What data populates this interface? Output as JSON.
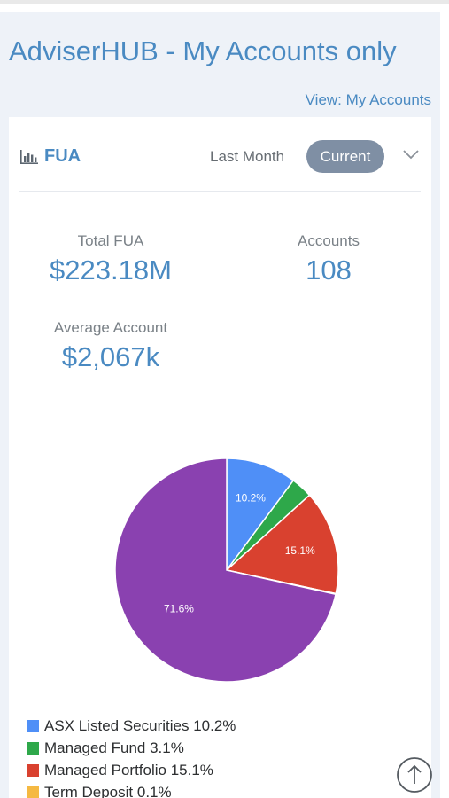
{
  "header": {
    "title": "AdviserHUB - My Accounts only",
    "view_link": "View: My Accounts"
  },
  "card": {
    "title": "FUA",
    "tabs": [
      {
        "label": "Last Month",
        "active": false
      },
      {
        "label": "Current",
        "active": true
      }
    ],
    "stats": {
      "total_fua": {
        "label": "Total FUA",
        "value": "$223.18M"
      },
      "accounts": {
        "label": "Accounts",
        "value": "108"
      },
      "average_account": {
        "label": "Average Account",
        "value": "$2,067k"
      }
    }
  },
  "chart_data": {
    "type": "pie",
    "title": "",
    "slices": [
      {
        "label": "ASX Listed Securities",
        "value": 10.2,
        "color": "#4f8ff7",
        "display": "10.2%",
        "legend": "ASX Listed Securities 10.2%"
      },
      {
        "label": "Managed Fund",
        "value": 3.1,
        "color": "#2ea84a",
        "display": "",
        "legend": "Managed Fund 3.1%"
      },
      {
        "label": "Managed Portfolio",
        "value": 15.1,
        "color": "#d9412f",
        "display": "15.1%",
        "legend": "Managed Portfolio 15.1%"
      },
      {
        "label": "Term Deposit",
        "value": 0.1,
        "color": "#f5b942",
        "display": "",
        "legend": "Term Deposit 0.1%"
      },
      {
        "label": "",
        "value": 71.6,
        "color": "#8a41b0",
        "display": "71.6%",
        "legend": ""
      }
    ],
    "legend_position": "bottom-left"
  },
  "icons": {
    "chart": "bar-chart-icon",
    "dropdown": "chevron-down-icon",
    "scroll_top": "arrow-up-circle-icon"
  }
}
